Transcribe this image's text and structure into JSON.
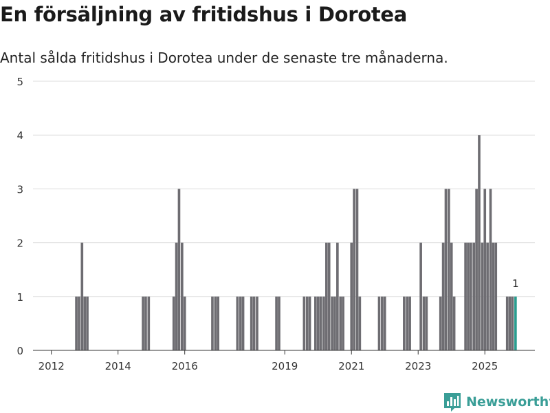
{
  "chart_data": {
    "type": "bar",
    "title": "En försäljning av fritidshus i Dorotea",
    "subtitle": "Antal sålda fritidshus i Dorotea under de senaste tre månaderna.",
    "xlabel": "",
    "ylabel": "",
    "ylim": [
      0,
      5
    ],
    "yticks": [
      0,
      1,
      2,
      3,
      4,
      5
    ],
    "xlim": [
      2011.45,
      2026.5
    ],
    "xticks": [
      2012,
      2014,
      2016,
      2019,
      2021,
      2023,
      2025
    ],
    "xtick_labels": [
      "2012",
      "2014",
      "2016",
      "2019",
      "2021",
      "2023",
      "2025"
    ],
    "bar_width_years": 0.075,
    "grid": true,
    "bar_color": "#6e6d72",
    "highlight_color": "#2a9d8f",
    "series": [
      {
        "name": "Antal sålda fritidshus",
        "points": [
          {
            "x": 2012.75,
            "y": 1
          },
          {
            "x": 2012.83,
            "y": 1
          },
          {
            "x": 2012.92,
            "y": 2
          },
          {
            "x": 2013.0,
            "y": 1
          },
          {
            "x": 2013.08,
            "y": 1
          },
          {
            "x": 2014.75,
            "y": 1
          },
          {
            "x": 2014.83,
            "y": 1
          },
          {
            "x": 2014.92,
            "y": 1
          },
          {
            "x": 2015.67,
            "y": 1
          },
          {
            "x": 2015.75,
            "y": 2
          },
          {
            "x": 2015.83,
            "y": 3
          },
          {
            "x": 2015.92,
            "y": 2
          },
          {
            "x": 2016.0,
            "y": 1
          },
          {
            "x": 2016.83,
            "y": 1
          },
          {
            "x": 2016.92,
            "y": 1
          },
          {
            "x": 2017.0,
            "y": 1
          },
          {
            "x": 2017.58,
            "y": 1
          },
          {
            "x": 2017.67,
            "y": 1
          },
          {
            "x": 2017.75,
            "y": 1
          },
          {
            "x": 2018.0,
            "y": 1
          },
          {
            "x": 2018.08,
            "y": 1
          },
          {
            "x": 2018.17,
            "y": 1
          },
          {
            "x": 2018.75,
            "y": 1
          },
          {
            "x": 2018.83,
            "y": 1
          },
          {
            "x": 2019.58,
            "y": 1
          },
          {
            "x": 2019.67,
            "y": 1
          },
          {
            "x": 2019.75,
            "y": 1
          },
          {
            "x": 2019.92,
            "y": 1
          },
          {
            "x": 2020.0,
            "y": 1
          },
          {
            "x": 2020.08,
            "y": 1
          },
          {
            "x": 2020.17,
            "y": 1
          },
          {
            "x": 2020.25,
            "y": 2
          },
          {
            "x": 2020.33,
            "y": 2
          },
          {
            "x": 2020.42,
            "y": 1
          },
          {
            "x": 2020.5,
            "y": 1
          },
          {
            "x": 2020.58,
            "y": 2
          },
          {
            "x": 2020.67,
            "y": 1
          },
          {
            "x": 2020.75,
            "y": 1
          },
          {
            "x": 2021.0,
            "y": 2
          },
          {
            "x": 2021.08,
            "y": 3
          },
          {
            "x": 2021.17,
            "y": 3
          },
          {
            "x": 2021.25,
            "y": 1
          },
          {
            "x": 2021.83,
            "y": 1
          },
          {
            "x": 2021.92,
            "y": 1
          },
          {
            "x": 2022.0,
            "y": 1
          },
          {
            "x": 2022.58,
            "y": 1
          },
          {
            "x": 2022.67,
            "y": 1
          },
          {
            "x": 2022.75,
            "y": 1
          },
          {
            "x": 2023.08,
            "y": 2
          },
          {
            "x": 2023.17,
            "y": 1
          },
          {
            "x": 2023.25,
            "y": 1
          },
          {
            "x": 2023.67,
            "y": 1
          },
          {
            "x": 2023.75,
            "y": 2
          },
          {
            "x": 2023.83,
            "y": 3
          },
          {
            "x": 2023.92,
            "y": 3
          },
          {
            "x": 2024.0,
            "y": 2
          },
          {
            "x": 2024.08,
            "y": 1
          },
          {
            "x": 2024.42,
            "y": 2
          },
          {
            "x": 2024.5,
            "y": 2
          },
          {
            "x": 2024.58,
            "y": 2
          },
          {
            "x": 2024.67,
            "y": 2
          },
          {
            "x": 2024.75,
            "y": 3
          },
          {
            "x": 2024.83,
            "y": 4
          },
          {
            "x": 2024.92,
            "y": 2
          },
          {
            "x": 2025.0,
            "y": 3
          },
          {
            "x": 2025.08,
            "y": 2
          },
          {
            "x": 2025.17,
            "y": 3
          },
          {
            "x": 2025.25,
            "y": 2
          },
          {
            "x": 2025.33,
            "y": 2
          },
          {
            "x": 2025.67,
            "y": 1
          },
          {
            "x": 2025.75,
            "y": 1
          },
          {
            "x": 2025.83,
            "y": 1
          },
          {
            "x": 2025.92,
            "y": 1,
            "highlight": true
          }
        ]
      }
    ],
    "annotations": [
      {
        "x": 2025.92,
        "y": 1,
        "text": "1"
      }
    ]
  },
  "brand": {
    "name": "Newsworthy",
    "icon": "newsworthy-logo-icon",
    "color": "#3a9e97"
  }
}
